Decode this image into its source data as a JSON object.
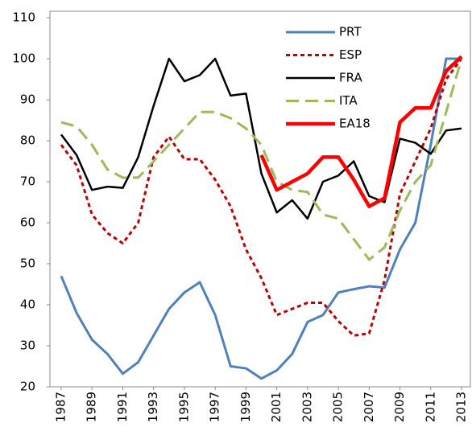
{
  "chart_data": {
    "type": "line",
    "x": [
      1987,
      1988,
      1989,
      1990,
      1991,
      1992,
      1993,
      1994,
      1995,
      1996,
      1997,
      1998,
      1999,
      2000,
      2001,
      2002,
      2003,
      2004,
      2005,
      2006,
      2007,
      2008,
      2009,
      2010,
      2011,
      2012,
      2013
    ],
    "xlim": [
      1987,
      2013
    ],
    "xticks": [
      1987,
      1989,
      1991,
      1993,
      1995,
      1997,
      1999,
      2001,
      2003,
      2005,
      2007,
      2009,
      2011,
      2013
    ],
    "ylim": [
      20,
      110
    ],
    "yticks": [
      20,
      30,
      40,
      50,
      60,
      70,
      80,
      90,
      100,
      110
    ],
    "legend": "upper right",
    "series": [
      {
        "name": "PRT",
        "color": "#4f81bd",
        "dash": "solid",
        "values": [
          47,
          38,
          31.5,
          28,
          23.2,
          26,
          32.5,
          39,
          43,
          45.5,
          37.5,
          25,
          24.5,
          22,
          24,
          28,
          35.8,
          37.5,
          43,
          43.8,
          44.5,
          44.2,
          53.5,
          60,
          79,
          100,
          100
        ]
      },
      {
        "name": "ESP",
        "color": "#c00000",
        "dash": "dotted",
        "values": [
          79,
          74,
          62,
          57.5,
          55,
          60,
          76,
          81,
          75.5,
          75.5,
          70.5,
          64,
          53.5,
          46.5,
          37.5,
          39,
          40.5,
          40.5,
          36,
          32.5,
          33,
          46,
          67,
          75,
          83,
          95,
          100
        ]
      },
      {
        "name": "FRA",
        "color": "#000000",
        "dash": "solid",
        "values": [
          81.5,
          76.5,
          68,
          68.8,
          68.5,
          76,
          88.5,
          100,
          94.5,
          96,
          100,
          91,
          91.5,
          72,
          62.5,
          65.5,
          61,
          70,
          71.5,
          75,
          66.5,
          65,
          80.5,
          79.5,
          76.8,
          82.5,
          83
        ]
      },
      {
        "name": "ITA",
        "color": "#9bbb59",
        "dash": "dashed",
        "values": [
          84.5,
          83.5,
          79,
          73,
          71,
          71,
          75,
          79,
          83,
          87,
          87,
          85.5,
          83,
          79,
          70,
          68,
          67.5,
          62,
          61,
          56,
          51,
          54,
          63,
          70,
          74,
          87,
          100
        ]
      },
      {
        "name": "EA18",
        "color": "#ff0000",
        "dash": "solid",
        "values": [
          null,
          null,
          null,
          null,
          null,
          null,
          null,
          null,
          null,
          null,
          null,
          null,
          null,
          76.5,
          68,
          70,
          72,
          76,
          76,
          70.5,
          64,
          66,
          84.5,
          88,
          88,
          97,
          100.5
        ]
      }
    ]
  }
}
